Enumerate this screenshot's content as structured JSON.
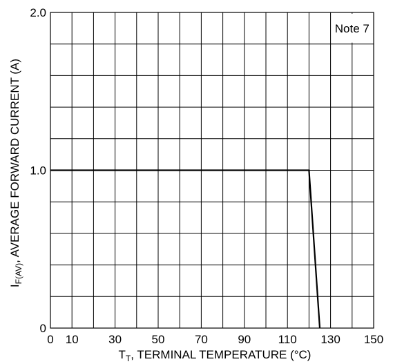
{
  "chart_data": {
    "type": "line",
    "x_axis": {
      "label_main": "T",
      "label_sub": "T",
      "label_rest": ", TERMINAL TEMPERATURE (°C)",
      "range": [
        0,
        150
      ],
      "ticks": [
        0,
        10,
        30,
        50,
        70,
        90,
        110,
        130,
        150
      ],
      "tick_labels": [
        "0",
        "10",
        "30",
        "50",
        "70",
        "90",
        "110",
        "130",
        "150"
      ],
      "gridlines": [
        10,
        20,
        30,
        40,
        50,
        60,
        70,
        80,
        90,
        100,
        110,
        120,
        130,
        140
      ]
    },
    "y_axis": {
      "label_main": "I",
      "label_sub": "F(AV)",
      "label_rest": ", AVERAGE FORWARD CURRENT (A)",
      "range": [
        0,
        2.0
      ],
      "ticks": [
        0,
        1.0,
        2.0
      ],
      "tick_labels": [
        "0",
        "1.0",
        "2.0"
      ],
      "gridlines": [
        0.2,
        0.4,
        0.6,
        0.8,
        1.0,
        1.2,
        1.4,
        1.6,
        1.8
      ]
    },
    "grid": true,
    "series": [
      {
        "color": "#000000",
        "x": [
          0,
          120,
          125
        ],
        "y": [
          1.0,
          1.0,
          0
        ]
      }
    ],
    "annotation": {
      "text": "Note 7",
      "x_range": [
        130,
        150
      ],
      "y_range": [
        1.8,
        2.0
      ]
    }
  }
}
